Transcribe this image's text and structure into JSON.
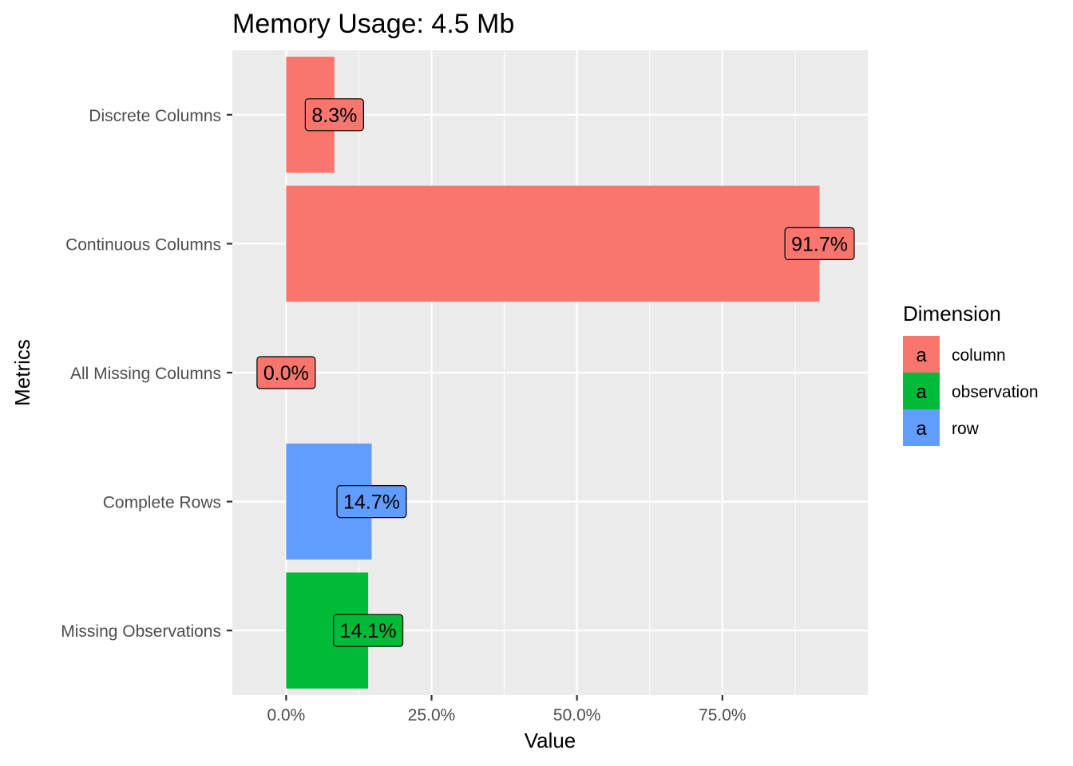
{
  "chart_data": {
    "type": "bar",
    "orientation": "horizontal",
    "title": "Memory Usage: 4.5 Mb",
    "xlabel": "Value",
    "ylabel": "Metrics",
    "xlim": [
      -0.0925,
      1.0
    ],
    "x_ticks": [
      {
        "value": 0.0,
        "label": "0.0%"
      },
      {
        "value": 0.25,
        "label": "25.0%"
      },
      {
        "value": 0.5,
        "label": "50.0%"
      },
      {
        "value": 0.75,
        "label": "75.0%"
      }
    ],
    "categories": [
      "Discrete Columns",
      "Continuous Columns",
      "All Missing Columns",
      "Complete Rows",
      "Missing Observations"
    ],
    "values": [
      0.083,
      0.917,
      0.0,
      0.147,
      0.141
    ],
    "value_labels": [
      "8.3%",
      "91.7%",
      "0.0%",
      "14.7%",
      "14.1%"
    ],
    "dimensions": [
      "column",
      "column",
      "column",
      "row",
      "observation"
    ],
    "grid": true,
    "panel_background": "#ebebeb",
    "legend": {
      "title": "Dimension",
      "placement": "right",
      "key_glyph": "a",
      "items": [
        {
          "label": "column",
          "color": "#f8766d"
        },
        {
          "label": "observation",
          "color": "#00ba38"
        },
        {
          "label": "row",
          "color": "#619cff"
        }
      ]
    }
  }
}
